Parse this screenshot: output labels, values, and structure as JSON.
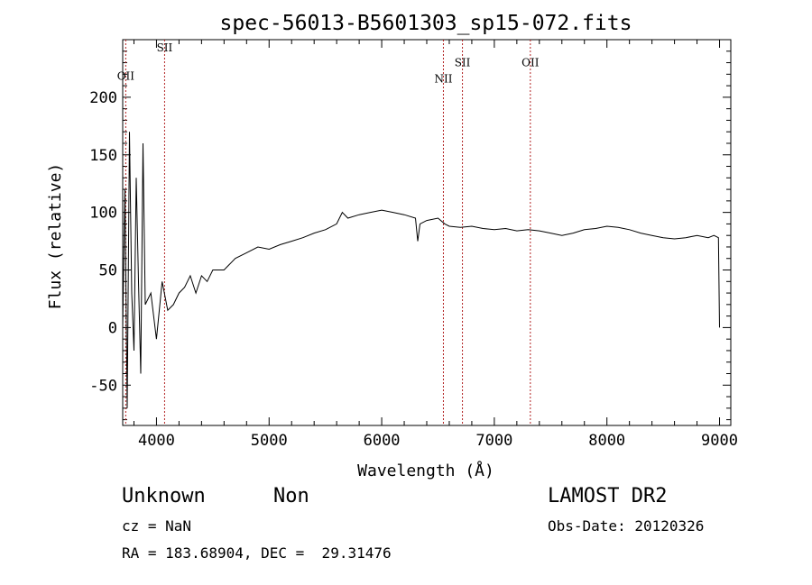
{
  "chart_data": {
    "type": "line",
    "title": "spec-56013-B5601303_sp15-072.fits",
    "xlabel": "Wavelength (Å)",
    "ylabel": "Flux (relative)",
    "xlim": [
      3700,
      9100
    ],
    "ylim": [
      -85,
      250
    ],
    "xticks": [
      4000,
      5000,
      6000,
      7000,
      8000,
      9000
    ],
    "yticks": [
      -50,
      0,
      50,
      100,
      150,
      200
    ],
    "grid": false,
    "line_color": "#000000",
    "marker_color": "#b22222",
    "series": [
      {
        "x": [
          3700,
          3720,
          3740,
          3760,
          3780,
          3800,
          3820,
          3840,
          3860,
          3880,
          3900,
          3950,
          4000,
          4050,
          4100,
          4150,
          4200,
          4250,
          4300,
          4350,
          4400,
          4450,
          4500,
          4600,
          4700,
          4800,
          4900,
          5000,
          5100,
          5200,
          5300,
          5400,
          5500,
          5600,
          5650,
          5700,
          5800,
          5900,
          6000,
          6100,
          6200,
          6300,
          6320,
          6340,
          6400,
          6500,
          6560,
          6600,
          6700,
          6800,
          6900,
          7000,
          7100,
          7200,
          7300,
          7400,
          7500,
          7600,
          7700,
          7800,
          7900,
          8000,
          8100,
          8200,
          8300,
          8400,
          8500,
          8600,
          8700,
          8800,
          8900,
          8950,
          8990,
          9000
        ],
        "y": [
          0,
          120,
          -70,
          170,
          30,
          -20,
          130,
          40,
          -40,
          160,
          20,
          30,
          -10,
          40,
          15,
          20,
          30,
          35,
          45,
          30,
          45,
          40,
          50,
          50,
          60,
          65,
          70,
          68,
          72,
          75,
          78,
          82,
          85,
          90,
          100,
          95,
          98,
          100,
          102,
          100,
          98,
          95,
          75,
          90,
          93,
          95,
          90,
          88,
          87,
          88,
          86,
          85,
          86,
          84,
          85,
          84,
          82,
          80,
          82,
          85,
          86,
          88,
          87,
          85,
          82,
          80,
          78,
          77,
          78,
          80,
          78,
          80,
          78,
          0
        ]
      }
    ],
    "lines": [
      {
        "label": "OII",
        "x": 3727,
        "label_y": 215
      },
      {
        "label": "SII",
        "x": 4072,
        "label_y": 240
      },
      {
        "label": "NII",
        "x": 6548,
        "label_y": 213
      },
      {
        "label": "SII",
        "x": 6717,
        "label_y": 227
      },
      {
        "label": "OII",
        "x": 7320,
        "label_y": 227
      }
    ]
  },
  "info": {
    "class": "Unknown",
    "subclass": "Non",
    "survey": "LAMOST DR2",
    "cz": "cz = NaN",
    "obs_date": "Obs-Date: 20120326",
    "coords": "RA = 183.68904, DEC =  29.31476"
  }
}
